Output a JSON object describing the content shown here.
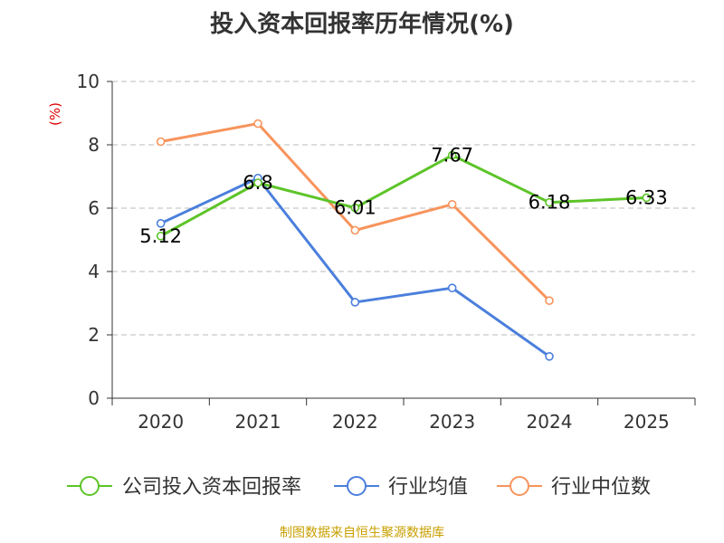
{
  "chart_data": {
    "type": "line",
    "title": "投入资本回报率历年情况(%)",
    "ylabel": "(%)",
    "categories": [
      "2020",
      "2021",
      "2022",
      "2023",
      "2024",
      "2025"
    ],
    "ylim": [
      0,
      10
    ],
    "yticks": [
      0,
      2,
      4,
      6,
      8,
      10
    ],
    "grid": true,
    "legend_position": "bottom",
    "series": [
      {
        "name": "公司投入资本回报率",
        "color": "#5dc429",
        "values": [
          5.12,
          6.8,
          6.01,
          7.67,
          6.18,
          6.33
        ],
        "labels": [
          "5.12",
          "6.8",
          "6.01",
          "7.67",
          "6.18",
          "6.33"
        ]
      },
      {
        "name": "行业均值",
        "color": "#4b7fdc",
        "values": [
          5.52,
          6.95,
          3.03,
          3.48,
          1.32,
          null
        ]
      },
      {
        "name": "行业中位数",
        "color": "#f7945c",
        "values": [
          8.1,
          8.67,
          5.3,
          6.12,
          3.08,
          null
        ]
      }
    ]
  },
  "source": "制图数据来自恒生聚源数据库"
}
